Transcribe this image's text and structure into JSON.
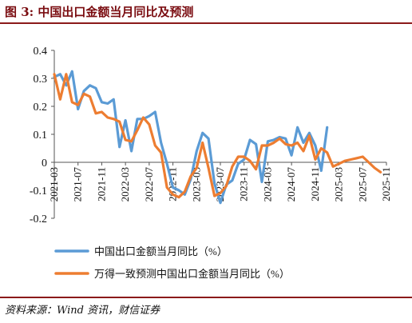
{
  "figure": {
    "title": "图 3:  中国出口金额当月同比及预测",
    "source": "资料来源：Wind 资讯，财信证券"
  },
  "chart_data": {
    "type": "line",
    "x_ticks": [
      "2021-03",
      "2021-07",
      "2021-11",
      "2022-03",
      "2022-07",
      "2022-11",
      "2023-03",
      "2023-07",
      "2023-11",
      "2024-03",
      "2024-07",
      "2024-11",
      "2025-03",
      "2025-07",
      "2025-11"
    ],
    "ylim": [
      -0.2,
      0.4
    ],
    "y_ticks": [
      -0.2,
      -0.1,
      0,
      0.1,
      0.2,
      0.3,
      0.4
    ],
    "grid": false,
    "legend_position": "bottom",
    "start_month": "2021-03",
    "series": [
      {
        "name": "中国出口金额当月同比（%）",
        "color": "#5b9bd5",
        "values": [
          0.305,
          0.315,
          0.275,
          0.325,
          0.19,
          0.255,
          0.275,
          0.265,
          0.215,
          0.21,
          0.225,
          0.055,
          0.15,
          0.04,
          0.155,
          0.155,
          0.165,
          0.18,
          0.07,
          -0.005,
          -0.09,
          -0.1,
          -0.115,
          -0.06,
          0.04,
          0.105,
          0.085,
          -0.075,
          -0.145,
          -0.08,
          -0.065,
          -0.005,
          0.01,
          0.08,
          0.065,
          -0.07,
          0.075,
          0.08,
          0.09,
          0.085,
          0.025,
          0.125,
          0.07,
          0.105,
          0.06,
          -0.03,
          0.125
        ]
      },
      {
        "name": "万得一致预测中国出口金额当月同比（%）",
        "color": "#ed7d31",
        "values": [
          0.315,
          0.225,
          0.315,
          0.215,
          0.205,
          0.245,
          0.235,
          0.175,
          0.18,
          0.16,
          0.155,
          0.145,
          0.08,
          0.075,
          0.115,
          0.16,
          0.135,
          0.06,
          0.035,
          -0.09,
          -0.115,
          -0.125,
          -0.105,
          -0.05,
          -0.02,
          0.07,
          -0.02,
          -0.12,
          -0.11,
          -0.085,
          -0.015,
          0.02,
          0.02,
          0.005,
          -0.025,
          0.06,
          0.06,
          0.07,
          0.085,
          0.065,
          0.06,
          0.07,
          0.04,
          0.095,
          0.01,
          0.05,
          0.035,
          -0.015,
          -0.005,
          0.005,
          0.01,
          0.015,
          0.02,
          0.0,
          -0.02,
          -0.035
        ]
      }
    ]
  }
}
